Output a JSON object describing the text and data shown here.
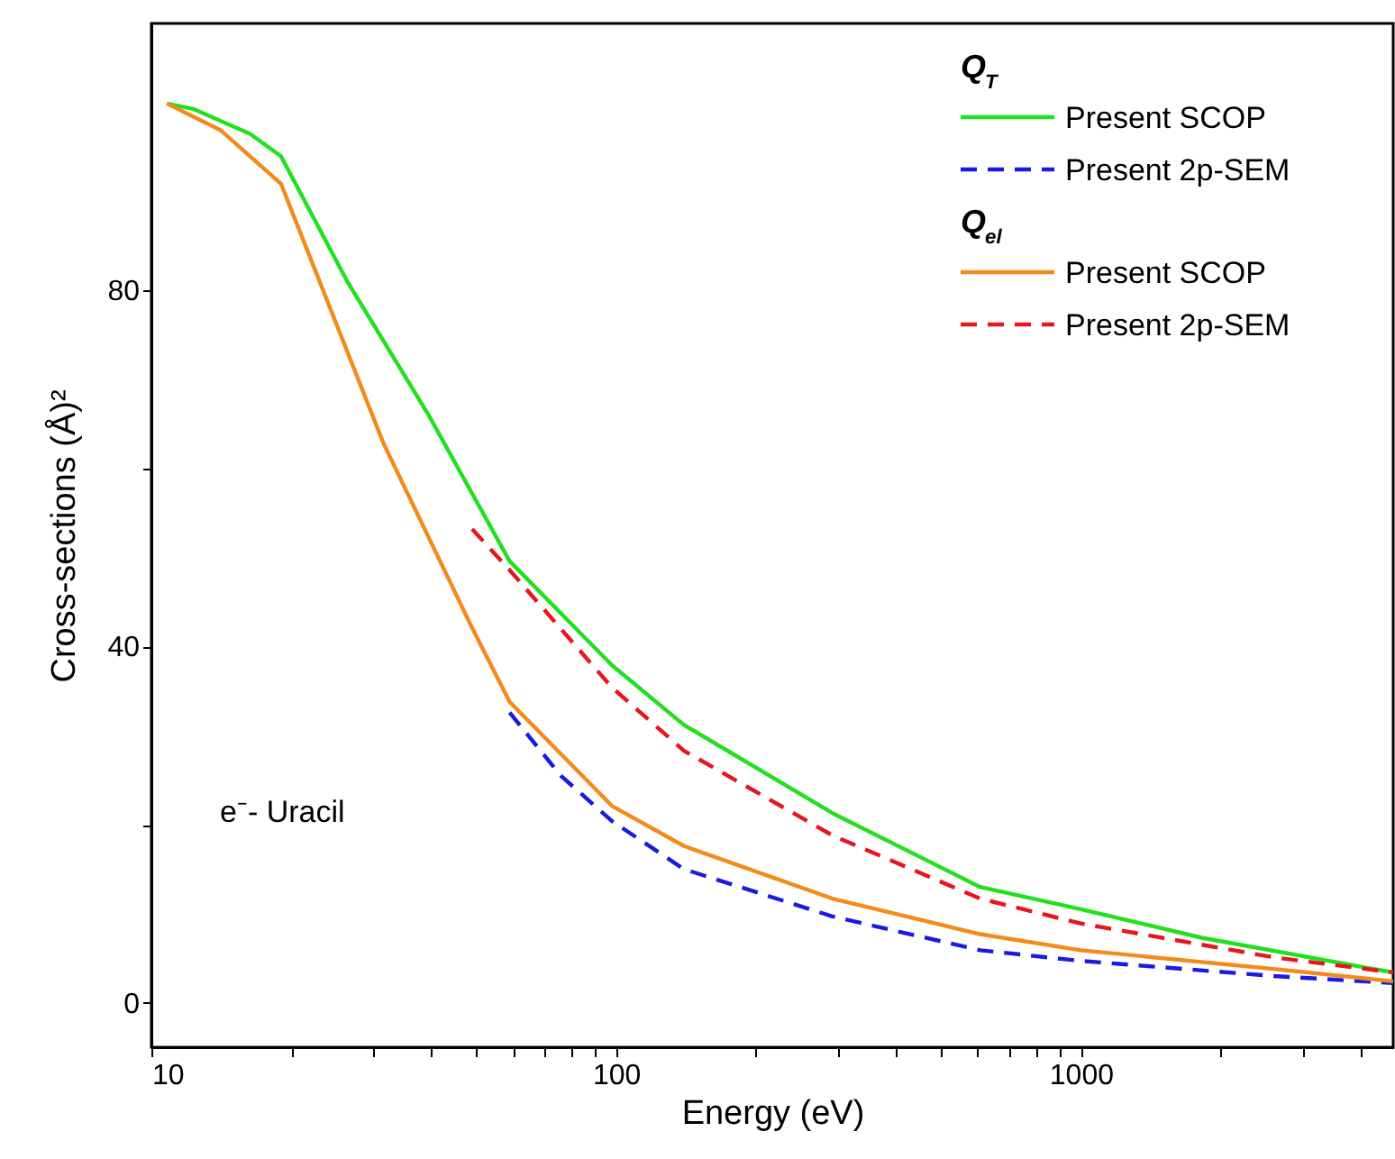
{
  "chart_data": {
    "type": "line",
    "xlabel": "Energy (eV)",
    "ylabel": "Cross-sections (Å)²",
    "log": "x",
    "xlim": [
      10,
      4700
    ],
    "ylim": [
      -5,
      110
    ],
    "xticks": [
      10,
      {
        "value": 20,
        "label": null
      },
      {
        "value": 30,
        "label": null
      },
      {
        "value": 40,
        "label": null
      },
      {
        "value": 50,
        "label": null
      },
      {
        "value": 60,
        "label": null
      },
      {
        "value": 70,
        "label": null
      },
      {
        "value": 80,
        "label": null
      },
      {
        "value": 90,
        "label": null
      },
      100,
      {
        "value": 200,
        "label": null
      },
      {
        "value": 300,
        "label": null
      },
      {
        "value": 400,
        "label": null
      },
      {
        "value": 500,
        "label": null
      },
      {
        "value": 600,
        "label": null
      },
      {
        "value": 700,
        "label": null
      },
      {
        "value": 800,
        "label": null
      },
      {
        "value": 900,
        "label": null
      },
      1000,
      {
        "value": 2000,
        "label": null
      },
      {
        "value": 3000,
        "label": null
      },
      {
        "value": 4000,
        "label": null
      }
    ],
    "yticks": [
      0,
      {
        "value": 20,
        "label": null
      },
      40,
      {
        "value": 60,
        "label": null
      },
      80
    ],
    "grid": false,
    "legend": "top right",
    "annotations": [
      "Q$_{T}$",
      "Q$_{el}$",
      "e⁻- Uracil"
    ],
    "series": [
      {
        "name": "Present SCOP",
        "color": "#22e01e",
        "line_style": "solid",
        "x": [
          10.8,
          12.3,
          16.3,
          19.0,
          26.4,
          39.5,
          59.0,
          98,
          140,
          292,
          607,
          1000,
          1820,
          4700
        ],
        "values": [
          101,
          100.4,
          97.6,
          95.1,
          81,
          66,
          49.6,
          37.9,
          31.2,
          21.3,
          13,
          10.5,
          7.3,
          3.4
        ]
      },
      {
        "name": "Present 2p-SEM",
        "color": "#1a1ae0",
        "line_style": "dashed",
        "x": [
          59,
          76,
          98,
          140,
          292,
          607,
          1000,
          2600,
          4700
        ],
        "values": [
          32.6,
          25.5,
          20.4,
          15,
          9.7,
          5.9,
          4.7,
          3.0,
          2.2
        ]
      },
      {
        "name": "Present SCOP",
        "color": "#f58a1a",
        "line_style": "solid",
        "x": [
          10.8,
          14.1,
          19,
          22.7,
          31.6,
          49,
          59,
          98,
          140,
          292,
          607,
          1000,
          2600,
          4700
        ],
        "values": [
          101,
          98,
          92,
          81.8,
          62.8,
          42.1,
          33.8,
          22.1,
          17.6,
          11.7,
          7.7,
          5.9,
          3.8,
          2.4
        ]
      },
      {
        "name": "Present 2p-SEM",
        "color": "#e8141e",
        "line_style": "dashed",
        "x": [
          49,
          59,
          98,
          140,
          292,
          607,
          1000,
          2600,
          4700
        ],
        "values": [
          53.2,
          48.6,
          35.4,
          28.3,
          18.8,
          11.7,
          8.9,
          5.1,
          3.4
        ]
      }
    ]
  }
}
